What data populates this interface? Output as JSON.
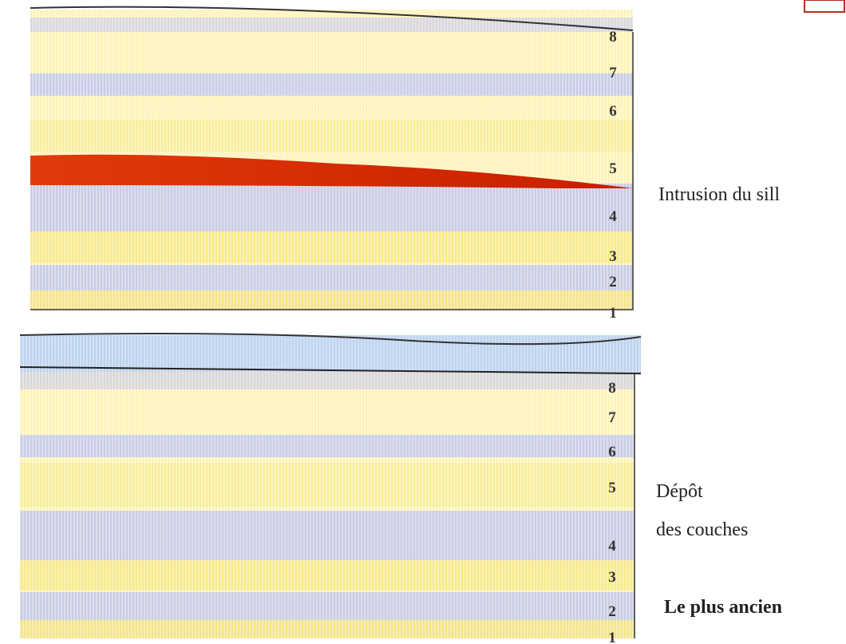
{
  "top": {
    "layers": [
      "8",
      "7",
      "6",
      "5",
      "4",
      "3",
      "2",
      "1"
    ],
    "caption": "Intrusion du sill"
  },
  "bottom": {
    "layers": [
      "8",
      "7",
      "6",
      "5",
      "4",
      "3",
      "2",
      "1"
    ],
    "captions": [
      "Dépôt",
      "des couches",
      "Le plus ancien"
    ]
  }
}
